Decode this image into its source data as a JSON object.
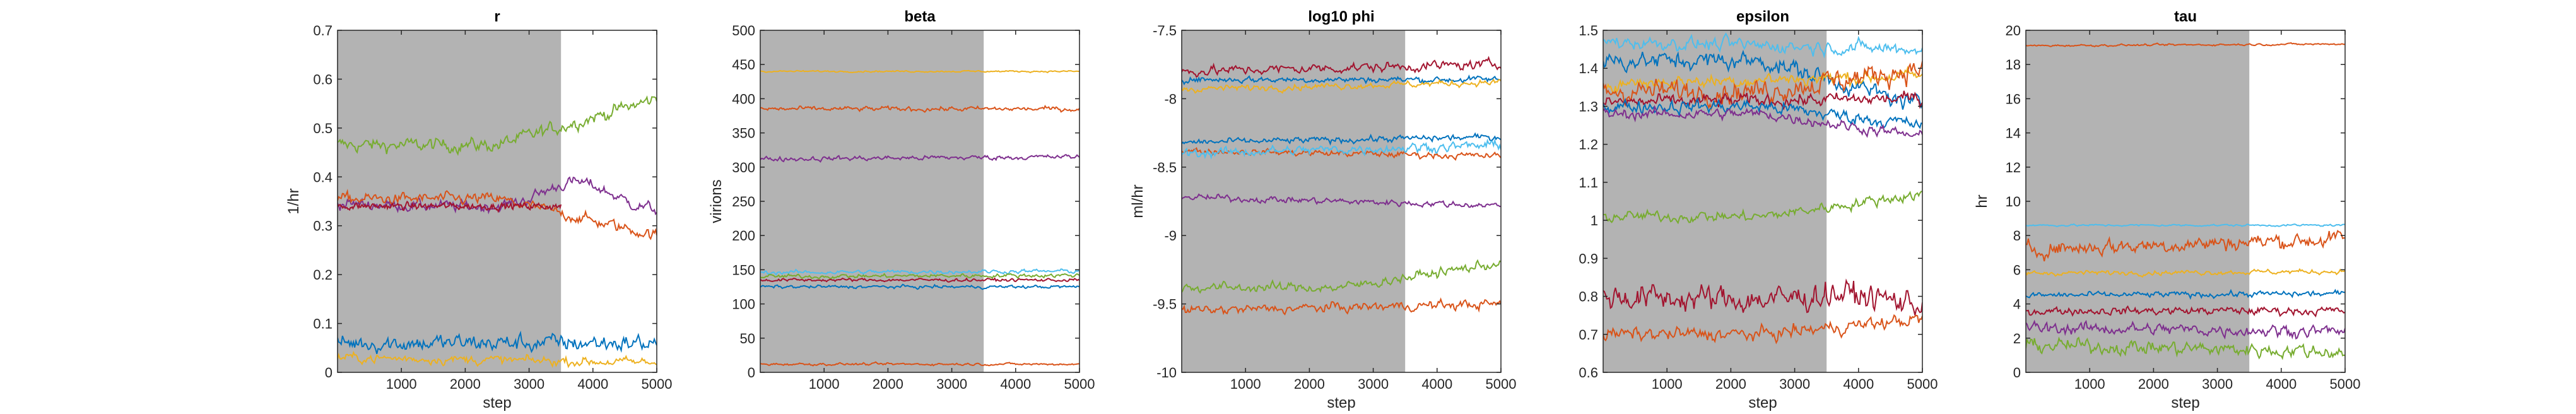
{
  "figure": {
    "burnin_end": 3500,
    "burnin_color": "#b3b3b3",
    "series_colors": [
      "#0072BD",
      "#D95319",
      "#EDB120",
      "#7E2F8E",
      "#77AC30",
      "#4DBEEE",
      "#A2142F"
    ]
  },
  "chart_data": [
    {
      "type": "line",
      "title": "r",
      "xlabel": "step",
      "ylabel": "1/hr",
      "xlim": [
        0,
        5000
      ],
      "ylim": [
        0,
        0.7
      ],
      "xticks": [
        "1000",
        "2000",
        "3000",
        "4000",
        "5000"
      ],
      "yticks": [
        "0",
        "0.1",
        "0.2",
        "0.3",
        "0.4",
        "0.5",
        "0.6",
        "0.7"
      ],
      "series": [
        {
          "color": "#77AC30",
          "start": 0.465,
          "end": 0.56,
          "noise": 0.012,
          "shape": "rise"
        },
        {
          "color": "#7E2F8E",
          "start": 0.345,
          "end": 0.33,
          "noise": 0.01,
          "shape": "bump"
        },
        {
          "color": "#D95319",
          "start": 0.355,
          "end": 0.28,
          "noise": 0.01,
          "shape": "fall"
        },
        {
          "color": "#A2142F",
          "start": 0.34,
          "end": 0.34,
          "noise": 0.006,
          "shape": "flat",
          "stop": 3500
        },
        {
          "color": "#0072BD",
          "start": 0.06,
          "end": 0.06,
          "noise": 0.015,
          "shape": "flat"
        },
        {
          "color": "#EDB120",
          "start": 0.03,
          "end": 0.02,
          "noise": 0.008,
          "shape": "flat"
        }
      ]
    },
    {
      "type": "line",
      "title": "beta",
      "xlabel": "",
      "ylabel": "virions",
      "xlim": [
        0,
        5000
      ],
      "ylim": [
        0,
        500
      ],
      "xticks": [
        "1000",
        "2000",
        "3000",
        "4000",
        "5000"
      ],
      "yticks": [
        "0",
        "50",
        "100",
        "150",
        "200",
        "250",
        "300",
        "350",
        "400",
        "450",
        "500"
      ],
      "series": [
        {
          "color": "#EDB120",
          "start": 440,
          "end": 440,
          "noise": 1.0,
          "shape": "flat"
        },
        {
          "color": "#D95319",
          "start": 385,
          "end": 385,
          "noise": 3.0,
          "shape": "flat"
        },
        {
          "color": "#7E2F8E",
          "start": 312,
          "end": 315,
          "noise": 3.0,
          "shape": "flat"
        },
        {
          "color": "#4DBEEE",
          "start": 146,
          "end": 148,
          "noise": 2.5,
          "shape": "flat"
        },
        {
          "color": "#77AC30",
          "start": 140,
          "end": 142,
          "noise": 2.5,
          "shape": "flat"
        },
        {
          "color": "#A2142F",
          "start": 135,
          "end": 135,
          "noise": 2.0,
          "shape": "flat"
        },
        {
          "color": "#0072BD",
          "start": 125,
          "end": 125,
          "noise": 2.0,
          "shape": "flat"
        },
        {
          "color": "#D95319",
          "start": 12,
          "end": 12,
          "noise": 1.5,
          "shape": "flat"
        }
      ]
    },
    {
      "type": "line",
      "title": "log10 phi",
      "xlabel": "step",
      "ylabel": "ml/hr",
      "xlim": [
        0,
        5000
      ],
      "ylim": [
        -10,
        -7.5
      ],
      "xticks": [
        "1000",
        "2000",
        "3000",
        "4000",
        "5000"
      ],
      "yticks": [
        "-10",
        "-9.5",
        "-9",
        "-8.5",
        "-8",
        "-7.5"
      ],
      "series": [
        {
          "color": "#A2142F",
          "start": -7.8,
          "end": -7.75,
          "noise": 0.03,
          "shape": "flat"
        },
        {
          "color": "#0072BD",
          "start": -7.86,
          "end": -7.86,
          "noise": 0.02,
          "shape": "flat"
        },
        {
          "color": "#EDB120",
          "start": -7.93,
          "end": -7.88,
          "noise": 0.02,
          "shape": "flat"
        },
        {
          "color": "#0072BD",
          "start": -8.32,
          "end": -8.28,
          "noise": 0.02,
          "shape": "flat"
        },
        {
          "color": "#D95319",
          "start": -8.38,
          "end": -8.42,
          "noise": 0.02,
          "shape": "flat"
        },
        {
          "color": "#4DBEEE",
          "start": -8.4,
          "end": -8.34,
          "noise": 0.03,
          "shape": "flat"
        },
        {
          "color": "#7E2F8E",
          "start": -8.72,
          "end": -8.78,
          "noise": 0.02,
          "shape": "flat"
        },
        {
          "color": "#77AC30",
          "start": -9.38,
          "end": -9.2,
          "noise": 0.03,
          "shape": "rise"
        },
        {
          "color": "#D95319",
          "start": -9.55,
          "end": -9.5,
          "noise": 0.03,
          "shape": "flat"
        }
      ]
    },
    {
      "type": "line",
      "title": "epsilon",
      "xlabel": "step",
      "ylabel": "",
      "xlim": [
        0,
        5000
      ],
      "ylim": [
        0.6,
        1.5
      ],
      "xticks": [
        "1000",
        "2000",
        "3000",
        "4000",
        "5000"
      ],
      "yticks": [
        "0.6",
        "0.7",
        "0.8",
        "0.9",
        "1",
        "1.1",
        "1.2",
        "1.3",
        "1.4",
        "1.5"
      ],
      "series": [
        {
          "color": "#4DBEEE",
          "start": 1.47,
          "end": 1.45,
          "noise": 0.015,
          "shape": "flat"
        },
        {
          "color": "#0072BD",
          "start": 1.42,
          "end": 1.3,
          "noise": 0.02,
          "shape": "fall"
        },
        {
          "color": "#EDB120",
          "start": 1.36,
          "end": 1.38,
          "noise": 0.015,
          "shape": "flat"
        },
        {
          "color": "#D95319",
          "start": 1.34,
          "end": 1.4,
          "noise": 0.025,
          "shape": "rise"
        },
        {
          "color": "#A2142F",
          "start": 1.31,
          "end": 1.32,
          "noise": 0.015,
          "shape": "flat"
        },
        {
          "color": "#0072BD",
          "start": 1.3,
          "end": 1.25,
          "noise": 0.015,
          "shape": "fall"
        },
        {
          "color": "#7E2F8E",
          "start": 1.28,
          "end": 1.22,
          "noise": 0.012,
          "shape": "fall"
        },
        {
          "color": "#77AC30",
          "start": 1.01,
          "end": 1.07,
          "noise": 0.012,
          "shape": "rise"
        },
        {
          "color": "#A2142F",
          "start": 0.8,
          "end": 0.78,
          "noise": 0.03,
          "shape": "bump"
        },
        {
          "color": "#D95319",
          "start": 0.7,
          "end": 0.74,
          "noise": 0.015,
          "shape": "rise"
        }
      ]
    },
    {
      "type": "line",
      "title": "tau",
      "xlabel": "step",
      "ylabel": "hr",
      "xlim": [
        0,
        5000
      ],
      "ylim": [
        0,
        20
      ],
      "xticks": [
        "1000",
        "2000",
        "3000",
        "4000",
        "5000"
      ],
      "yticks": [
        "0",
        "2",
        "4",
        "6",
        "8",
        "10",
        "12",
        "14",
        "16",
        "18",
        "20"
      ],
      "series": [
        {
          "color": "#D95319",
          "start": 19.1,
          "end": 19.2,
          "noise": 0.05,
          "shape": "flat"
        },
        {
          "color": "#4DBEEE",
          "start": 8.6,
          "end": 8.6,
          "noise": 0.05,
          "shape": "flat"
        },
        {
          "color": "#D95319",
          "start": 7.2,
          "end": 7.8,
          "noise": 0.4,
          "shape": "flat"
        },
        {
          "color": "#EDB120",
          "start": 5.8,
          "end": 5.9,
          "noise": 0.12,
          "shape": "flat"
        },
        {
          "color": "#0072BD",
          "start": 4.5,
          "end": 4.6,
          "noise": 0.15,
          "shape": "flat"
        },
        {
          "color": "#A2142F",
          "start": 3.6,
          "end": 3.6,
          "noise": 0.2,
          "shape": "flat"
        },
        {
          "color": "#7E2F8E",
          "start": 2.6,
          "end": 2.4,
          "noise": 0.3,
          "shape": "flat"
        },
        {
          "color": "#77AC30",
          "start": 1.6,
          "end": 1.2,
          "noise": 0.35,
          "shape": "flat"
        }
      ]
    }
  ]
}
